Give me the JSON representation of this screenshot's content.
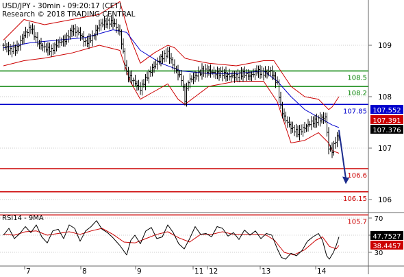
{
  "header": {
    "line1": "USD/JPY - 30min - 09:20:17 (CET)",
    "line2": "Research © 2018 TRADING CENTRAL"
  },
  "chart_data": [
    {
      "type": "candlestick",
      "title": "USD/JPY - 30min - 09:20:17 (CET)",
      "y_ticks": [
        106,
        107,
        108,
        109
      ],
      "ylim": [
        105.7,
        109.75
      ],
      "x_ticks": [
        "7",
        "8",
        "9",
        "11",
        "12",
        "13",
        "14"
      ],
      "last_price": 107.376,
      "price_series": [
        [
          0,
          109.0
        ],
        [
          10,
          108.9
        ],
        [
          20,
          108.95
        ],
        [
          30,
          109.2
        ],
        [
          40,
          109.35
        ],
        [
          50,
          109.05
        ],
        [
          60,
          108.95
        ],
        [
          70,
          108.9
        ],
        [
          80,
          109.05
        ],
        [
          90,
          109.1
        ],
        [
          100,
          109.3
        ],
        [
          110,
          109.25
        ],
        [
          120,
          109.05
        ],
        [
          130,
          109.15
        ],
        [
          140,
          109.4
        ],
        [
          150,
          109.45
        ],
        [
          160,
          109.45
        ],
        [
          170,
          109.25
        ],
        [
          180,
          108.45
        ],
        [
          190,
          108.3
        ],
        [
          200,
          108.15
        ],
        [
          210,
          108.4
        ],
        [
          220,
          108.6
        ],
        [
          230,
          108.75
        ],
        [
          240,
          108.85
        ],
        [
          250,
          108.55
        ],
        [
          260,
          108.35
        ],
        [
          265,
          107.95
        ],
        [
          270,
          108.3
        ],
        [
          280,
          108.4
        ],
        [
          290,
          108.5
        ],
        [
          300,
          108.5
        ],
        [
          310,
          108.45
        ],
        [
          320,
          108.45
        ],
        [
          330,
          108.4
        ],
        [
          340,
          108.4
        ],
        [
          350,
          108.45
        ],
        [
          360,
          108.4
        ],
        [
          370,
          108.5
        ],
        [
          380,
          108.45
        ],
        [
          390,
          108.5
        ],
        [
          400,
          108.25
        ],
        [
          405,
          107.8
        ],
        [
          410,
          107.6
        ],
        [
          420,
          107.4
        ],
        [
          430,
          107.3
        ],
        [
          440,
          107.4
        ],
        [
          450,
          107.5
        ],
        [
          460,
          107.55
        ],
        [
          470,
          107.6
        ],
        [
          475,
          107.0
        ],
        [
          480,
          106.95
        ],
        [
          485,
          107.15
        ],
        [
          490,
          107.25
        ]
      ],
      "bollinger_upper": [
        [
          0,
          109.1
        ],
        [
          30,
          109.5
        ],
        [
          60,
          109.4
        ],
        [
          100,
          109.5
        ],
        [
          140,
          109.6
        ],
        [
          170,
          109.85
        ],
        [
          185,
          109.15
        ],
        [
          200,
          108.65
        ],
        [
          220,
          108.85
        ],
        [
          240,
          109.0
        ],
        [
          250,
          108.95
        ],
        [
          265,
          108.75
        ],
        [
          280,
          108.7
        ],
        [
          300,
          108.65
        ],
        [
          340,
          108.6
        ],
        [
          380,
          108.7
        ],
        [
          395,
          108.7
        ],
        [
          405,
          108.5
        ],
        [
          420,
          108.2
        ],
        [
          440,
          108.0
        ],
        [
          460,
          107.95
        ],
        [
          475,
          107.75
        ],
        [
          480,
          107.8
        ],
        [
          490,
          108.0
        ]
      ],
      "bollinger_lower": [
        [
          0,
          108.6
        ],
        [
          30,
          108.7
        ],
        [
          60,
          108.75
        ],
        [
          100,
          108.85
        ],
        [
          140,
          109.0
        ],
        [
          170,
          108.9
        ],
        [
          185,
          108.3
        ],
        [
          200,
          107.95
        ],
        [
          220,
          108.1
        ],
        [
          240,
          108.25
        ],
        [
          255,
          107.95
        ],
        [
          265,
          107.85
        ],
        [
          280,
          108.0
        ],
        [
          300,
          108.2
        ],
        [
          340,
          108.3
        ],
        [
          380,
          108.3
        ],
        [
          400,
          107.9
        ],
        [
          420,
          107.1
        ],
        [
          440,
          107.15
        ],
        [
          460,
          107.3
        ],
        [
          475,
          107.1
        ],
        [
          480,
          106.95
        ],
        [
          490,
          106.9
        ]
      ],
      "moving_average": [
        [
          0,
          108.95
        ],
        [
          40,
          109.05
        ],
        [
          80,
          109.1
        ],
        [
          120,
          109.15
        ],
        [
          160,
          109.3
        ],
        [
          180,
          109.25
        ],
        [
          200,
          108.9
        ],
        [
          230,
          108.65
        ],
        [
          260,
          108.5
        ],
        [
          300,
          108.45
        ],
        [
          340,
          108.45
        ],
        [
          380,
          108.5
        ],
        [
          400,
          108.3
        ],
        [
          420,
          108.0
        ],
        [
          440,
          107.75
        ],
        [
          460,
          107.6
        ],
        [
          480,
          107.45
        ],
        [
          490,
          107.4
        ]
      ],
      "forecast_arrow": {
        "from": [
          490,
          107.35
        ],
        "to": [
          500,
          106.3
        ]
      },
      "levels": [
        {
          "value": 108.5,
          "label": "108.5",
          "color": "#008000"
        },
        {
          "value": 108.2,
          "label": "108.2",
          "color": "#008000"
        },
        {
          "value": 107.85,
          "label": "107.85",
          "color": "#0000cc"
        },
        {
          "value": 106.6,
          "label": "106.6",
          "color": "#cc0000"
        },
        {
          "value": 106.15,
          "label": "106.15",
          "color": "#cc0000"
        },
        {
          "value": 105.7,
          "label": "105.7",
          "color": "#cc0000"
        }
      ],
      "price_tags": [
        {
          "value": 107.552,
          "label": "107.552",
          "color": "#0000cc"
        },
        {
          "value": 107.391,
          "label": "107.391",
          "color": "#cc0000"
        },
        {
          "value": 107.376,
          "label": "107.376",
          "color": "#000000"
        }
      ]
    },
    {
      "type": "line",
      "title": "RSI14 - 9MA",
      "y_ticks": [
        30,
        50,
        70
      ],
      "ylim": [
        17,
        80
      ],
      "series": [
        {
          "name": "RSI14",
          "value": 47.7527,
          "color": "#000000"
        },
        {
          "name": "9MA",
          "value": 38.4457,
          "color": "#cc0000"
        }
      ],
      "rsi": [
        [
          0,
          50
        ],
        [
          8,
          58
        ],
        [
          16,
          46
        ],
        [
          24,
          52
        ],
        [
          32,
          60
        ],
        [
          40,
          53
        ],
        [
          48,
          62
        ],
        [
          56,
          48
        ],
        [
          64,
          41
        ],
        [
          72,
          55
        ],
        [
          80,
          57
        ],
        [
          88,
          46
        ],
        [
          96,
          62
        ],
        [
          104,
          58
        ],
        [
          112,
          43
        ],
        [
          120,
          55
        ],
        [
          128,
          60
        ],
        [
          136,
          67
        ],
        [
          144,
          57
        ],
        [
          152,
          53
        ],
        [
          160,
          47
        ],
        [
          170,
          38
        ],
        [
          180,
          27
        ],
        [
          186,
          44
        ],
        [
          192,
          50
        ],
        [
          200,
          40
        ],
        [
          208,
          55
        ],
        [
          216,
          59
        ],
        [
          224,
          46
        ],
        [
          232,
          48
        ],
        [
          240,
          62
        ],
        [
          248,
          53
        ],
        [
          256,
          40
        ],
        [
          264,
          34
        ],
        [
          272,
          46
        ],
        [
          280,
          60
        ],
        [
          288,
          51
        ],
        [
          296,
          52
        ],
        [
          304,
          48
        ],
        [
          312,
          60
        ],
        [
          320,
          58
        ],
        [
          328,
          49
        ],
        [
          336,
          53
        ],
        [
          344,
          45
        ],
        [
          352,
          56
        ],
        [
          360,
          50
        ],
        [
          368,
          55
        ],
        [
          376,
          46
        ],
        [
          384,
          52
        ],
        [
          392,
          50
        ],
        [
          400,
          34
        ],
        [
          406,
          24
        ],
        [
          412,
          22
        ],
        [
          420,
          29
        ],
        [
          428,
          26
        ],
        [
          436,
          32
        ],
        [
          444,
          43
        ],
        [
          452,
          48
        ],
        [
          460,
          52
        ],
        [
          466,
          44
        ],
        [
          472,
          26
        ],
        [
          476,
          22
        ],
        [
          482,
          30
        ],
        [
          486,
          38
        ],
        [
          490,
          48
        ]
      ],
      "ma": [
        [
          0,
          51
        ],
        [
          16,
          50
        ],
        [
          32,
          54
        ],
        [
          48,
          55
        ],
        [
          64,
          50
        ],
        [
          80,
          52
        ],
        [
          96,
          54
        ],
        [
          112,
          51
        ],
        [
          128,
          55
        ],
        [
          144,
          58
        ],
        [
          160,
          51
        ],
        [
          176,
          42
        ],
        [
          192,
          41
        ],
        [
          208,
          46
        ],
        [
          224,
          51
        ],
        [
          240,
          54
        ],
        [
          256,
          47
        ],
        [
          272,
          42
        ],
        [
          288,
          51
        ],
        [
          304,
          51
        ],
        [
          320,
          54
        ],
        [
          336,
          51
        ],
        [
          352,
          51
        ],
        [
          368,
          51
        ],
        [
          384,
          50
        ],
        [
          396,
          44
        ],
        [
          410,
          30
        ],
        [
          424,
          27
        ],
        [
          440,
          33
        ],
        [
          456,
          44
        ],
        [
          466,
          48
        ],
        [
          476,
          37
        ],
        [
          486,
          34
        ],
        [
          490,
          38
        ]
      ]
    }
  ]
}
